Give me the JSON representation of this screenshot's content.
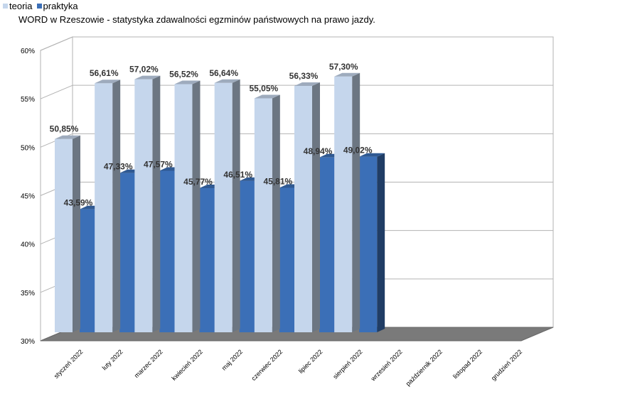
{
  "chart_data": {
    "type": "bar",
    "title": "WORD w Rzeszowie - statystyka zdawalności egzminów państwowych na prawo jazdy.",
    "categories": [
      "styczeń 2022",
      "luty 2022",
      "marzec 2022",
      "kwiecień 2022",
      "maj 2022",
      "czerwiec 2022",
      "lipiec 2022",
      "sierpień 2022",
      "wrzesień 2022",
      "październik 2022",
      "listopad 2022",
      "grudzień 2022"
    ],
    "series": [
      {
        "name": "teoria",
        "color": "#c5d6ec",
        "values": [
          50.85,
          56.61,
          57.02,
          56.52,
          56.64,
          55.05,
          56.33,
          57.3,
          null,
          null,
          null,
          null
        ],
        "labels": [
          "50,85%",
          "56,61%",
          "57,02%",
          "56,52%",
          "56,64%",
          "55,05%",
          "56,33%",
          "57,30%",
          "",
          "",
          "",
          ""
        ]
      },
      {
        "name": "praktyka",
        "color": "#3b6fb7",
        "values": [
          43.59,
          47.33,
          47.57,
          45.77,
          46.51,
          45.81,
          48.94,
          49.02,
          null,
          null,
          null,
          null
        ],
        "labels": [
          "43,59%",
          "47,33%",
          "47,57%",
          "45,77%",
          "46,51%",
          "45,81%",
          "48,94%",
          "49,02%",
          "",
          "",
          "",
          ""
        ]
      }
    ],
    "ylim": [
      30,
      60
    ],
    "yticks": [
      "30%",
      "35%",
      "40%",
      "45%",
      "50%",
      "55%",
      "60%"
    ],
    "legend": "top-left",
    "grid": true
  }
}
